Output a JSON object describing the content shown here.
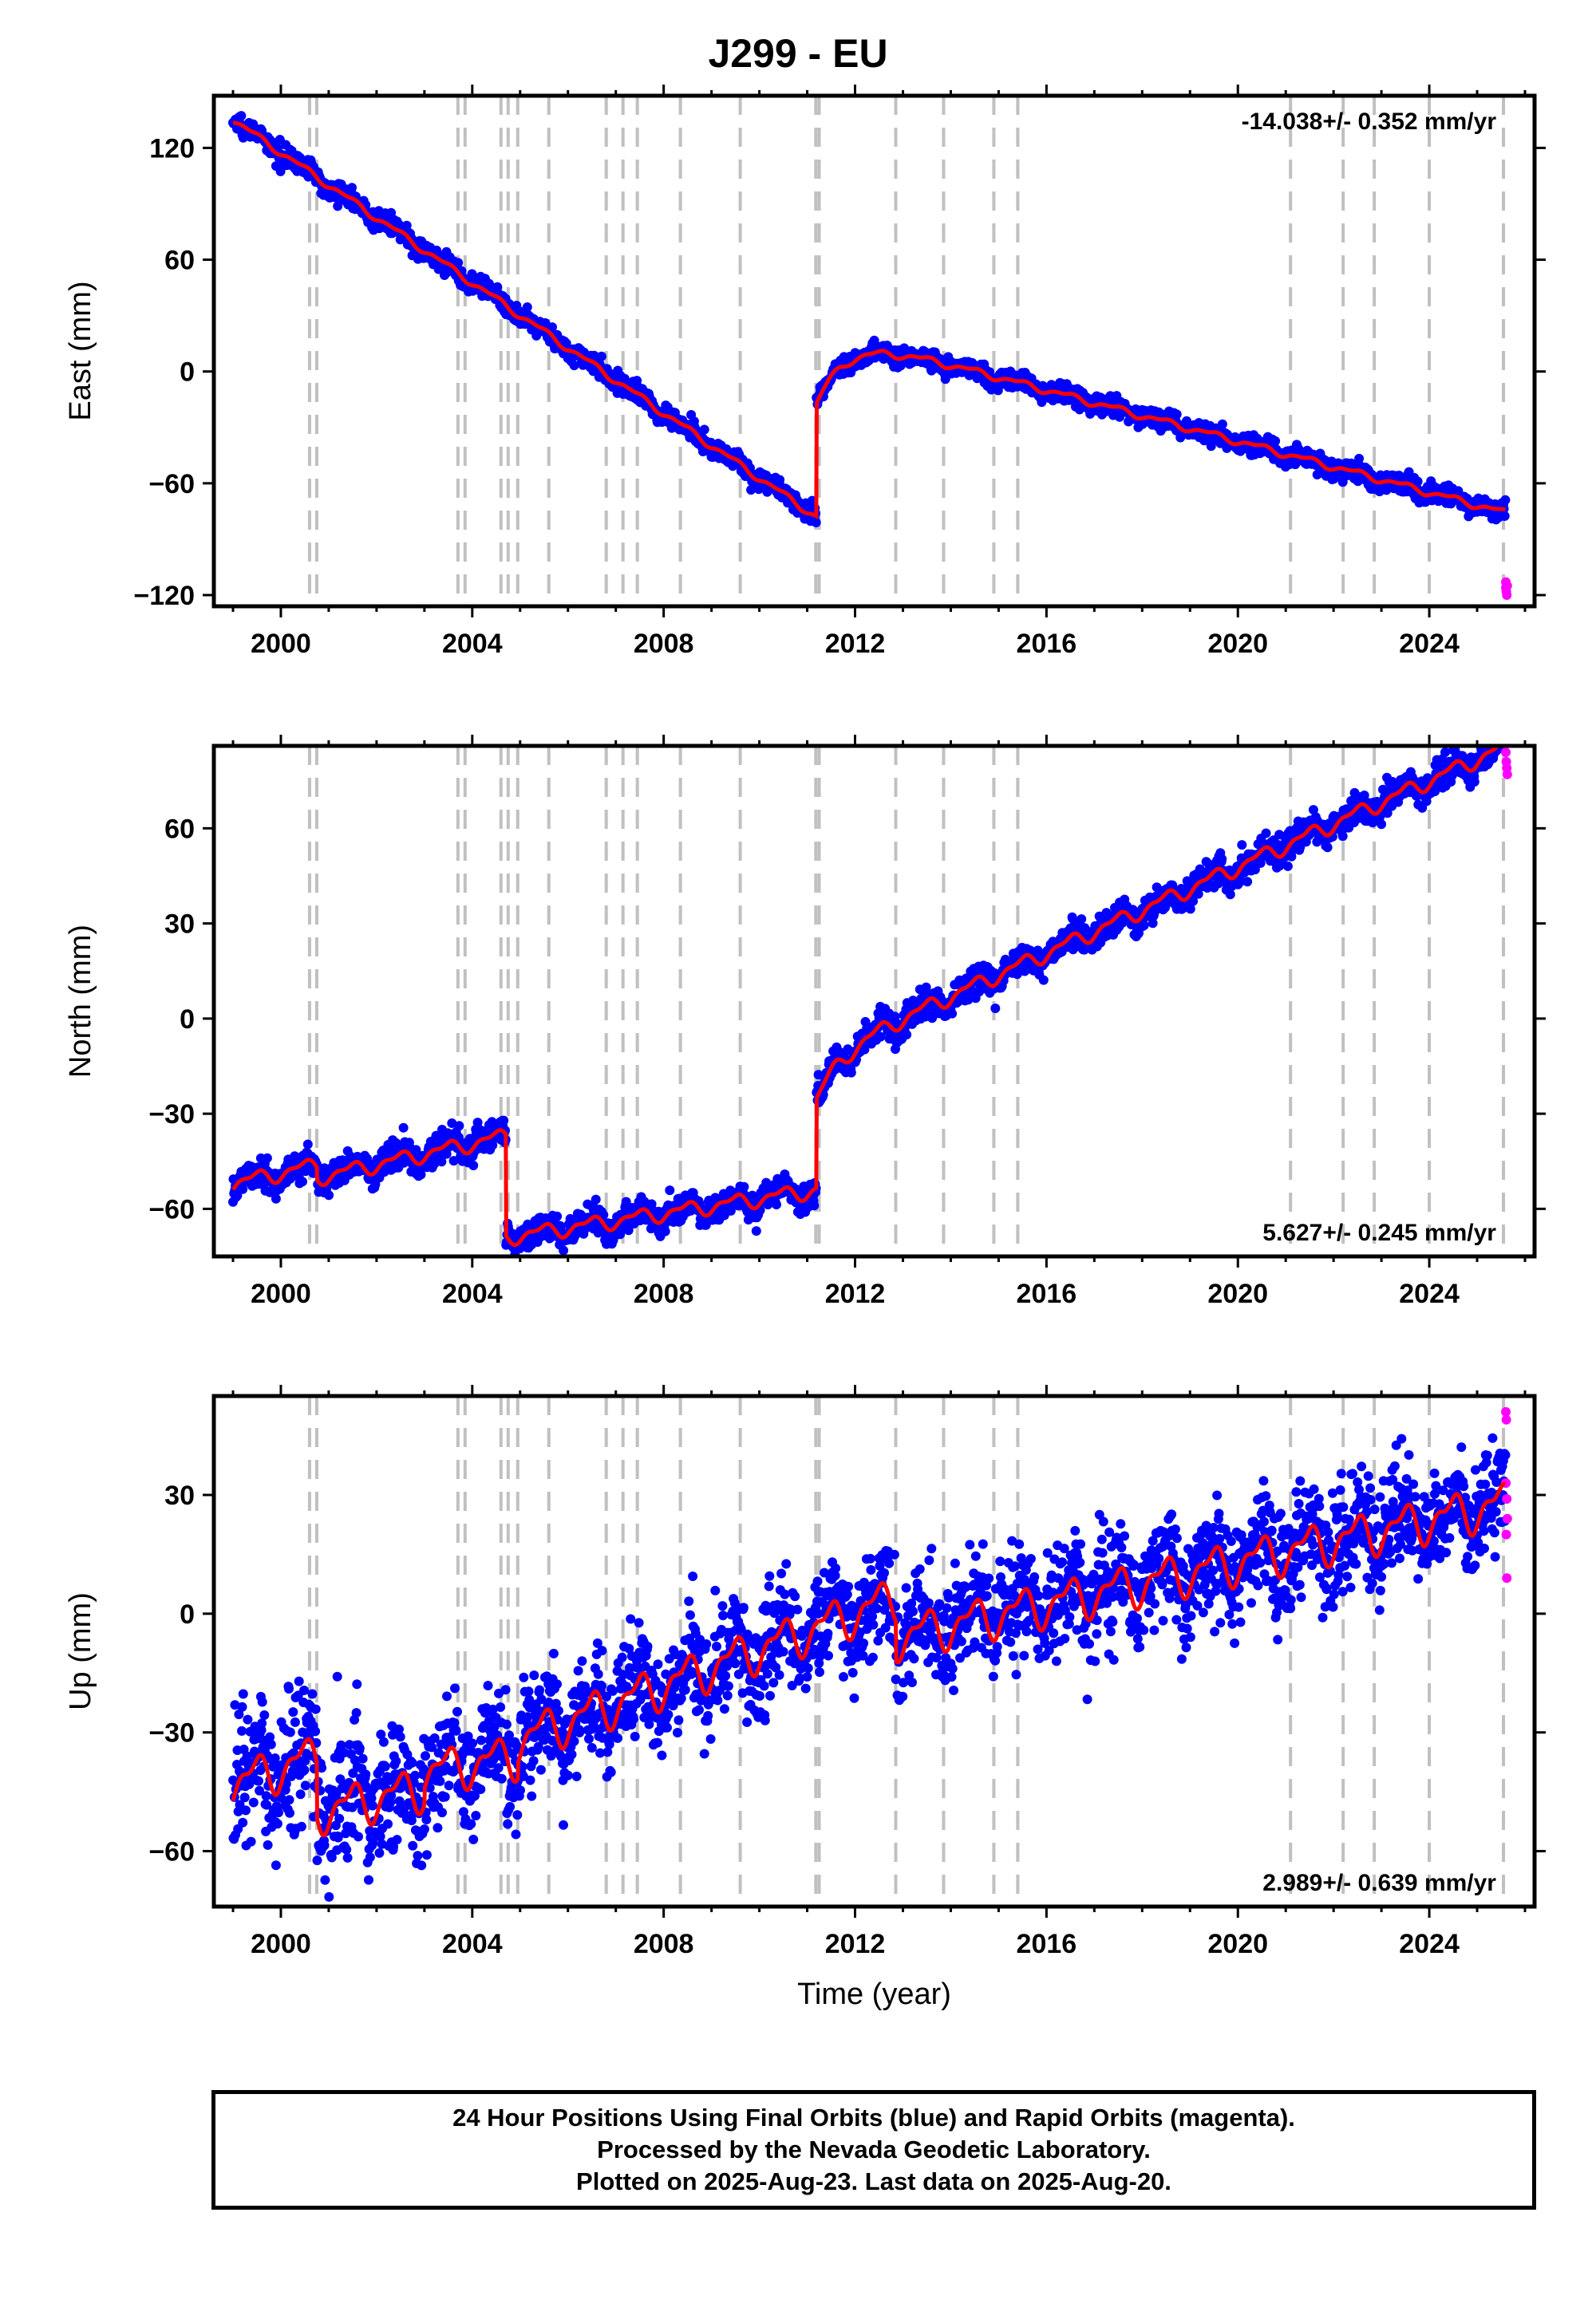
{
  "title": "J299 - EU",
  "footer": {
    "lines": [
      "24 Hour Positions Using Final Orbits (blue) and Rapid Orbits (magenta).",
      "Processed by the Nevada Geodetic Laboratory.",
      "Plotted on 2025-Aug-23. Last data on 2025-Aug-20."
    ]
  },
  "colors": {
    "final_orbits": "#0000ff",
    "rapid_orbits": "#ff00ff",
    "model_fit": "#ff0000",
    "event_lines": "#c0c0c0",
    "frame": "#000000"
  },
  "chart_data": [
    {
      "type": "scatter",
      "id": "east",
      "ylabel": "East (mm)",
      "xlabel": "",
      "xlim": [
        1998.6,
        2026.2
      ],
      "ylim": [
        -126,
        148
      ],
      "xticks": [
        2000,
        2004,
        2008,
        2012,
        2016,
        2020,
        2024
      ],
      "yticks": [
        -120,
        -60,
        0,
        60,
        120
      ],
      "rate_label": "-14.038+/- 0.352 mm/yr",
      "rate_position": "top-right",
      "event_lines": [
        2000.6,
        2000.75,
        2003.7,
        2003.85,
        2004.6,
        2004.75,
        2004.95,
        2005.6,
        2006.8,
        2007.15,
        2007.45,
        2008.35,
        2009.6,
        2011.18,
        2011.25,
        2012.85,
        2013.85,
        2014.9,
        2015.4,
        2021.1,
        2022.2,
        2022.85,
        2024.0,
        2025.55
      ],
      "model": {
        "segments": [
          {
            "x_start": 1999.0,
            "x_end": 2011.19,
            "y_start": 135.0,
            "y_end": -78.0
          },
          {
            "x_start": 2011.19,
            "x_end": 2025.62,
            "y_start": -18.0,
            "y_end": -117.0
          }
        ],
        "postseismic": {
          "amplitude": 41,
          "tau_years": 0.6,
          "start": 2011.19
        },
        "seasonal_amplitude": 1.5,
        "steps": []
      },
      "scatter_sigma": 2.5,
      "rapid_points": [
        {
          "x": 2025.6,
          "y": -113
        },
        {
          "x": 2025.6,
          "y": -116
        },
        {
          "x": 2025.61,
          "y": -118
        },
        {
          "x": 2025.62,
          "y": -120
        },
        {
          "x": 2025.63,
          "y": -115
        }
      ]
    },
    {
      "type": "scatter",
      "id": "north",
      "ylabel": "North (mm)",
      "xlabel": "",
      "xlim": [
        1998.6,
        2026.2
      ],
      "ylim": [
        -75,
        86
      ],
      "xticks": [
        2000,
        2004,
        2008,
        2012,
        2016,
        2020,
        2024
      ],
      "yticks": [
        -60,
        -30,
        0,
        30,
        60
      ],
      "rate_label": "5.627+/- 0.245 mm/yr",
      "rate_position": "bottom-right",
      "event_lines": [
        2000.6,
        2000.75,
        2003.7,
        2003.85,
        2004.6,
        2004.75,
        2004.95,
        2005.6,
        2006.8,
        2007.15,
        2007.45,
        2008.35,
        2009.6,
        2011.18,
        2011.25,
        2012.85,
        2013.85,
        2014.9,
        2015.4,
        2021.1,
        2022.2,
        2022.85,
        2024.0,
        2025.55
      ],
      "model": {
        "segments": [
          {
            "x_start": 1999.0,
            "x_end": 2004.7,
            "y_start": -52.0,
            "y_end": -33.0
          },
          {
            "x_start": 2004.7,
            "x_end": 2011.19,
            "y_start": -65.0,
            "y_end": -50.0
          },
          {
            "x_start": 2011.19,
            "x_end": 2025.62,
            "y_start": -22.0,
            "y_end": 76.0
          }
        ],
        "postseismic": {
          "amplitude": 14,
          "tau_years": 0.5,
          "start": 2011.19
        },
        "seasonal_amplitude": 2.0,
        "steps": [
          {
            "x": 2000.75,
            "dy": -4
          }
        ]
      },
      "scatter_sigma": 2.2,
      "rapid_points": [
        {
          "x": 2025.6,
          "y": 84
        },
        {
          "x": 2025.61,
          "y": 81
        },
        {
          "x": 2025.62,
          "y": 79
        },
        {
          "x": 2025.63,
          "y": 77
        }
      ]
    },
    {
      "type": "scatter",
      "id": "up",
      "ylabel": "Up (mm)",
      "xlabel": "Time (year)",
      "xlim": [
        1998.6,
        2026.2
      ],
      "ylim": [
        -74,
        55
      ],
      "xticks": [
        2000,
        2004,
        2008,
        2012,
        2016,
        2020,
        2024
      ],
      "yticks": [
        -60,
        -30,
        0,
        30
      ],
      "rate_label": "2.989+/- 0.639 mm/yr",
      "rate_position": "bottom-right",
      "event_lines": [
        2000.6,
        2000.75,
        2003.7,
        2003.85,
        2004.6,
        2004.75,
        2004.95,
        2005.6,
        2006.8,
        2007.15,
        2007.45,
        2008.35,
        2009.6,
        2011.18,
        2011.25,
        2012.85,
        2013.85,
        2014.9,
        2015.4,
        2021.1,
        2022.2,
        2022.85,
        2024.0,
        2025.55
      ],
      "model": {
        "segments": [
          {
            "x_start": 1999.0,
            "x_end": 2000.75,
            "y_start": -43.0,
            "y_end": -36.0
          },
          {
            "x_start": 2000.75,
            "x_end": 2003.0,
            "y_start": -50.0,
            "y_end": -44.0
          },
          {
            "x_start": 2003.0,
            "x_end": 2004.95,
            "y_start": -40.0,
            "y_end": -36.0
          },
          {
            "x_start": 2004.95,
            "x_end": 2012.85,
            "y_start": -32.0,
            "y_end": 4.0
          },
          {
            "x_start": 2012.85,
            "x_end": 2025.62,
            "y_start": -6.0,
            "y_end": 28.0
          }
        ],
        "postseismic": {
          "amplitude": 0,
          "tau_years": 1,
          "start": 2011.19
        },
        "seasonal_amplitude": 4.5,
        "steps": []
      },
      "scatter_sigma": 6.5,
      "rapid_points": [
        {
          "x": 2025.6,
          "y": 51
        },
        {
          "x": 2025.61,
          "y": 49
        },
        {
          "x": 2025.6,
          "y": 33
        },
        {
          "x": 2025.62,
          "y": 29
        },
        {
          "x": 2025.63,
          "y": 24
        },
        {
          "x": 2025.61,
          "y": 20
        },
        {
          "x": 2025.62,
          "y": 9
        }
      ]
    }
  ]
}
